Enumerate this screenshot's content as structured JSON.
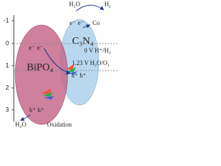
{
  "axis": {
    "ticks": [
      "-1",
      "0",
      "1",
      "2",
      "3"
    ]
  },
  "top": {
    "reactant": "H₂O",
    "product": "H₂",
    "cocatalyst": "Co"
  },
  "materials": {
    "left": "BiPO₄",
    "right": "C₃N₄"
  },
  "potentials": {
    "reduction": "0 V H⁺/H₂",
    "oxidation": "1.23 V H₂O/O₂"
  },
  "carriers": {
    "electron": "e⁻",
    "hole": "h⁺"
  },
  "bottom": {
    "reactant": "H₂O",
    "process": "Oxidation"
  }
}
